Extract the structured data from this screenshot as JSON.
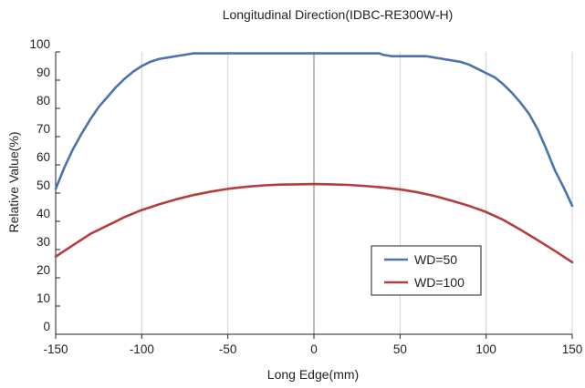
{
  "chart_data": {
    "type": "line",
    "title": "Longitudinal Direction(IDBC-RE300W-H)",
    "xlabel": "Long Edge(mm)",
    "ylabel": "Relative Value(%)",
    "xlim": [
      -150,
      150
    ],
    "ylim": [
      0,
      100
    ],
    "xticks": [
      -150,
      -100,
      -50,
      0,
      50,
      100,
      150
    ],
    "yticks": [
      0,
      10,
      20,
      30,
      40,
      50,
      60,
      70,
      80,
      90,
      100
    ],
    "xtick_labels": [
      "-150",
      "-100",
      "-50",
      "0",
      "50",
      "100",
      "150"
    ],
    "ytick_labels": [
      "0",
      "10",
      "20",
      "30",
      "40",
      "50",
      "60",
      "70",
      "80",
      "90",
      "100"
    ],
    "grid": "vertical",
    "legend_position": "lower-right",
    "series": [
      {
        "name": "WD=50",
        "color": "#4a73b0",
        "x": [
          -150,
          -145,
          -140,
          -135,
          -130,
          -125,
          -120,
          -115,
          -110,
          -105,
          -100,
          -95,
          -90,
          -85,
          -80,
          -75,
          -70,
          -60,
          -50,
          -40,
          -20,
          0,
          20,
          38,
          40,
          45,
          50,
          60,
          65,
          70,
          75,
          80,
          85,
          90,
          95,
          100,
          105,
          110,
          115,
          120,
          125,
          130,
          135,
          140,
          145,
          150
        ],
        "y": [
          51.5,
          59,
          65.5,
          71,
          76,
          80.5,
          84,
          87.5,
          90.5,
          93,
          95,
          96.5,
          97.5,
          98,
          98.5,
          99,
          99.5,
          99.5,
          99.5,
          99.5,
          99.5,
          99.5,
          99.5,
          99.5,
          99,
          98.5,
          98.5,
          98.5,
          98.5,
          98,
          97.5,
          97,
          96.5,
          95.5,
          94,
          92.5,
          91,
          88.5,
          85.5,
          82,
          78,
          72.5,
          65.5,
          58,
          52,
          45.5
        ]
      },
      {
        "name": "WD=100",
        "color": "#b43d41",
        "x": [
          -150,
          -140,
          -130,
          -120,
          -110,
          -100,
          -90,
          -80,
          -70,
          -60,
          -50,
          -40,
          -30,
          -20,
          -10,
          0,
          10,
          20,
          30,
          40,
          50,
          60,
          70,
          80,
          90,
          100,
          110,
          120,
          130,
          140,
          150
        ],
        "y": [
          27.5,
          31.5,
          35.5,
          38.5,
          41.5,
          44,
          46,
          47.8,
          49.3,
          50.5,
          51.5,
          52.2,
          52.7,
          53,
          53.1,
          53.2,
          53.1,
          52.9,
          52.5,
          52,
          51.3,
          50.3,
          49,
          47.3,
          45.5,
          43.3,
          40.5,
          37,
          33.3,
          29.5,
          25.5
        ]
      }
    ]
  }
}
